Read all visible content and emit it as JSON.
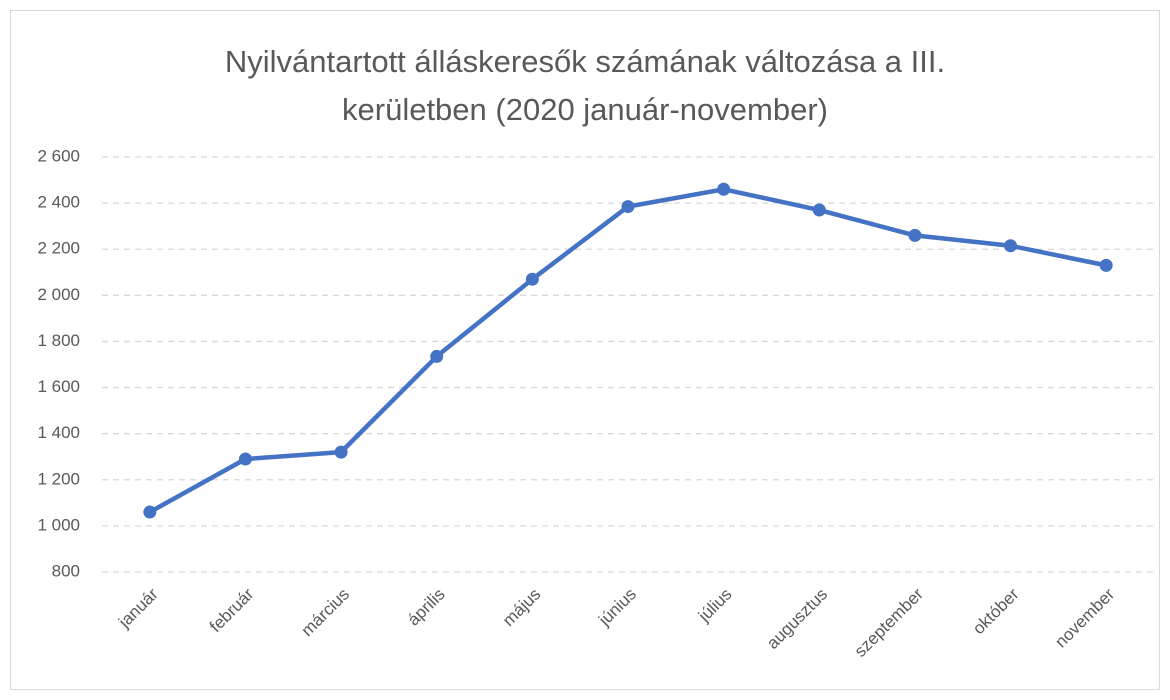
{
  "chart_data": {
    "type": "line",
    "title": "Nyilvántartott álláskeresők számának változása a III. kerületben (2020 január-november)",
    "categories": [
      "január",
      "február",
      "március",
      "április",
      "május",
      "június",
      "július",
      "augusztus",
      "szeptember",
      "október",
      "november"
    ],
    "series": [
      {
        "name": "Nyilvántartott álláskeresők",
        "color": "#4472c4",
        "values": [
          1060,
          1290,
          1320,
          1735,
          2070,
          2385,
          2460,
          2370,
          2260,
          2215,
          2130
        ]
      }
    ],
    "ylim": [
      800,
      2600
    ],
    "yticks": [
      800,
      {
        "value": 1000,
        "label": "1 000"
      },
      {
        "value": 1200,
        "label": "1 200"
      },
      {
        "value": 1400,
        "label": "1 400"
      },
      {
        "value": 1600,
        "label": "1 600"
      },
      {
        "value": 1800,
        "label": "1 800"
      },
      {
        "value": 2000,
        "label": "2 000"
      },
      {
        "value": 2200,
        "label": "2 200"
      },
      {
        "value": 2400,
        "label": "2 400"
      },
      {
        "value": 2600,
        "label": "2 600"
      }
    ],
    "grid": true
  }
}
